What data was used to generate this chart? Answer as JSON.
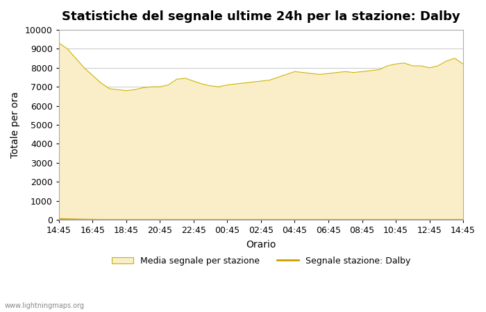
{
  "title": "Statistiche del segnale ultime 24h per la stazione: Dalby",
  "xlabel": "Orario",
  "ylabel": "Totale per ora",
  "xlim": [
    0,
    24
  ],
  "ylim": [
    0,
    10000
  ],
  "yticks": [
    0,
    1000,
    2000,
    3000,
    4000,
    5000,
    6000,
    7000,
    8000,
    9000,
    10000
  ],
  "xtick_labels": [
    "14:45",
    "16:45",
    "18:45",
    "20:45",
    "22:45",
    "00:45",
    "02:45",
    "04:45",
    "06:45",
    "08:45",
    "10:45",
    "12:45",
    "14:45"
  ],
  "fill_color": "#FAEEC8",
  "fill_edge_color": "#C8B400",
  "line_color": "#C8A000",
  "background_color": "#FFFFFF",
  "grid_color": "#CCCCCC",
  "title_fontsize": 13,
  "axis_label_fontsize": 10,
  "tick_fontsize": 9,
  "watermark": "www.lightningmaps.org",
  "legend_fill_label": "Media segnale per stazione",
  "legend_line_label": "Segnale stazione: Dalby",
  "x_values": [
    0,
    0.5,
    1,
    1.5,
    2,
    2.5,
    3,
    3.5,
    4,
    4.5,
    5,
    5.5,
    6,
    6.5,
    7,
    7.5,
    8,
    8.5,
    9,
    9.5,
    10,
    10.5,
    11,
    11.5,
    12,
    12.5,
    13,
    13.5,
    14,
    14.5,
    15,
    15.5,
    16,
    16.5,
    17,
    17.5,
    18,
    18.5,
    19,
    19.5,
    20,
    20.5,
    21,
    21.5,
    22,
    22.5,
    23,
    23.5,
    24
  ],
  "fill_values": [
    9300,
    9000,
    8500,
    8000,
    7600,
    7200,
    6900,
    6850,
    6800,
    6850,
    6950,
    7000,
    7000,
    7100,
    7400,
    7450,
    7300,
    7150,
    7050,
    7000,
    7100,
    7150,
    7200,
    7250,
    7300,
    7350,
    7500,
    7650,
    7800,
    7750,
    7700,
    7650,
    7700,
    7750,
    7800,
    7750,
    7800,
    7850,
    7900,
    8100,
    8200,
    8250,
    8100,
    8100,
    8000,
    8100,
    8350,
    8500,
    8200
  ],
  "line_values": [
    50,
    40,
    30,
    20,
    15,
    10,
    10,
    10,
    10,
    10,
    10,
    10,
    10,
    10,
    10,
    10,
    10,
    10,
    10,
    10,
    10,
    10,
    10,
    10,
    10,
    10,
    10,
    10,
    10,
    10,
    10,
    10,
    10,
    10,
    10,
    10,
    10,
    10,
    10,
    10,
    10,
    10,
    10,
    10,
    10,
    10,
    10,
    10,
    10
  ]
}
